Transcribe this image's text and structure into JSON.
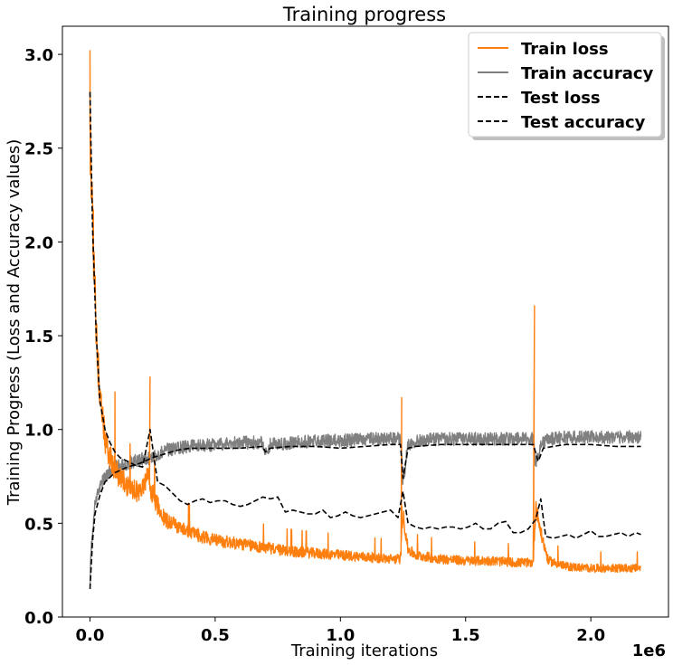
{
  "chart_data": {
    "type": "line",
    "title": "Training progress",
    "xlabel": "Training iterations",
    "ylabel": "Training Progress (Loss and Accuracy values)",
    "x_offset_label": "1e6",
    "xlim": [
      -0.11,
      2.31
    ],
    "ylim": [
      0.0,
      3.15
    ],
    "x_ticks": [
      0.0,
      0.5,
      1.0,
      1.5,
      2.0
    ],
    "x_tick_labels": [
      "0.0",
      "0.5",
      "1.0",
      "1.5",
      "2.0"
    ],
    "y_ticks": [
      0.0,
      0.5,
      1.0,
      1.5,
      2.0,
      2.5,
      3.0
    ],
    "y_tick_labels": [
      "0.0",
      "0.5",
      "1.0",
      "1.5",
      "2.0",
      "2.5",
      "3.0"
    ],
    "grid": false,
    "legend_position": "top-right",
    "series": [
      {
        "name": "Train loss",
        "color": "#ff7f0e",
        "style": "solid",
        "noise": 0.06,
        "x": [
          0.0,
          0.005,
          0.02,
          0.04,
          0.06,
          0.08,
          0.1,
          0.15,
          0.2,
          0.23,
          0.26,
          0.3,
          0.4,
          0.5,
          0.6,
          0.7,
          0.8,
          0.9,
          1.0,
          1.1,
          1.2,
          1.24,
          1.25,
          1.27,
          1.3,
          1.4,
          1.5,
          1.6,
          1.7,
          1.77,
          1.78,
          1.8,
          1.83,
          1.9,
          2.0,
          2.1,
          2.2
        ],
        "y": [
          2.5,
          2.4,
          1.7,
          1.15,
          0.95,
          0.85,
          0.78,
          0.7,
          0.66,
          0.74,
          0.62,
          0.52,
          0.45,
          0.41,
          0.39,
          0.37,
          0.35,
          0.34,
          0.33,
          0.32,
          0.31,
          0.31,
          0.55,
          0.36,
          0.33,
          0.31,
          0.3,
          0.3,
          0.29,
          0.29,
          0.6,
          0.45,
          0.3,
          0.27,
          0.26,
          0.26,
          0.26
        ]
      },
      {
        "name": "Train accuracy",
        "color": "#808080",
        "style": "solid",
        "noise": 0.035,
        "x": [
          0.0,
          0.005,
          0.02,
          0.04,
          0.06,
          0.1,
          0.15,
          0.2,
          0.25,
          0.3,
          0.4,
          0.5,
          0.6,
          0.69,
          0.7,
          0.72,
          0.8,
          0.9,
          1.0,
          1.1,
          1.2,
          1.24,
          1.25,
          1.27,
          1.3,
          1.4,
          1.5,
          1.6,
          1.7,
          1.77,
          1.78,
          1.8,
          1.83,
          1.9,
          2.0,
          2.1,
          2.2
        ],
        "y": [
          0.2,
          0.35,
          0.6,
          0.7,
          0.75,
          0.8,
          0.82,
          0.84,
          0.85,
          0.89,
          0.91,
          0.92,
          0.93,
          0.93,
          0.88,
          0.92,
          0.93,
          0.94,
          0.94,
          0.95,
          0.95,
          0.95,
          0.72,
          0.92,
          0.94,
          0.95,
          0.95,
          0.95,
          0.95,
          0.95,
          0.82,
          0.92,
          0.95,
          0.96,
          0.96,
          0.96,
          0.96
        ]
      },
      {
        "name": "Test loss",
        "color": "#000000",
        "style": "dashed",
        "x": [
          0.0,
          0.01,
          0.025,
          0.04,
          0.06,
          0.08,
          0.1,
          0.12,
          0.15,
          0.18,
          0.21,
          0.24,
          0.27,
          0.3,
          0.33,
          0.36,
          0.39,
          0.42,
          0.45,
          0.48,
          0.51,
          0.54,
          0.57,
          0.6,
          0.63,
          0.66,
          0.69,
          0.72,
          0.75,
          0.78,
          0.81,
          0.84,
          0.87,
          0.9,
          0.93,
          0.96,
          0.99,
          1.02,
          1.05,
          1.08,
          1.11,
          1.14,
          1.17,
          1.2,
          1.23,
          1.25,
          1.27,
          1.3,
          1.33,
          1.36,
          1.39,
          1.42,
          1.45,
          1.48,
          1.51,
          1.54,
          1.57,
          1.6,
          1.63,
          1.66,
          1.69,
          1.72,
          1.75,
          1.78,
          1.8,
          1.82,
          1.85,
          1.88,
          1.91,
          1.94,
          1.97,
          2.0,
          2.03,
          2.06,
          2.09,
          2.12,
          2.15,
          2.18,
          2.2
        ],
        "y": [
          2.8,
          2.1,
          1.5,
          1.15,
          1.0,
          0.93,
          0.88,
          0.85,
          0.83,
          0.81,
          0.8,
          1.0,
          0.72,
          0.7,
          0.66,
          0.62,
          0.6,
          0.62,
          0.63,
          0.61,
          0.62,
          0.62,
          0.6,
          0.59,
          0.6,
          0.62,
          0.64,
          0.63,
          0.64,
          0.56,
          0.57,
          0.56,
          0.55,
          0.55,
          0.57,
          0.53,
          0.54,
          0.56,
          0.54,
          0.53,
          0.54,
          0.55,
          0.56,
          0.57,
          0.53,
          0.67,
          0.5,
          0.48,
          0.47,
          0.48,
          0.47,
          0.48,
          0.48,
          0.47,
          0.48,
          0.5,
          0.47,
          0.47,
          0.5,
          0.51,
          0.45,
          0.45,
          0.47,
          0.52,
          0.63,
          0.43,
          0.42,
          0.43,
          0.44,
          0.42,
          0.44,
          0.46,
          0.43,
          0.43,
          0.44,
          0.45,
          0.43,
          0.45,
          0.44
        ]
      },
      {
        "name": "Test accuracy",
        "color": "#000000",
        "style": "dashed",
        "x": [
          0.0,
          0.01,
          0.02,
          0.04,
          0.06,
          0.1,
          0.15,
          0.2,
          0.25,
          0.3,
          0.35,
          0.4,
          0.5,
          0.6,
          0.69,
          0.7,
          0.72,
          0.8,
          0.9,
          1.0,
          1.1,
          1.2,
          1.24,
          1.25,
          1.27,
          1.3,
          1.4,
          1.5,
          1.6,
          1.7,
          1.77,
          1.79,
          1.81,
          1.85,
          1.9,
          2.0,
          2.1,
          2.2
        ],
        "y": [
          0.15,
          0.4,
          0.55,
          0.65,
          0.72,
          0.77,
          0.8,
          0.82,
          0.85,
          0.87,
          0.89,
          0.9,
          0.9,
          0.9,
          0.91,
          0.88,
          0.9,
          0.91,
          0.91,
          0.9,
          0.91,
          0.92,
          0.92,
          0.74,
          0.9,
          0.91,
          0.92,
          0.92,
          0.92,
          0.92,
          0.92,
          0.83,
          0.9,
          0.91,
          0.92,
          0.92,
          0.91,
          0.91
        ]
      }
    ]
  }
}
